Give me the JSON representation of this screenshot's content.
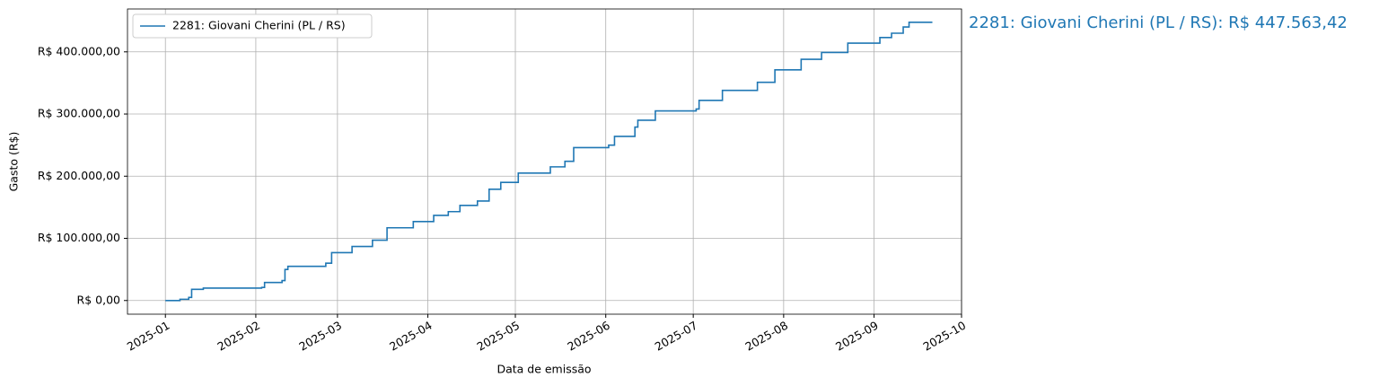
{
  "chart_data": {
    "type": "step-line",
    "x_label": "Data de emissão",
    "y_label": "Gasto (R$)",
    "annotation": "2281: Giovani Cherini (PL / RS): R$ 447.563,42",
    "x": [
      "2025-01-01",
      "2025-01-06",
      "2025-01-09",
      "2025-01-10",
      "2025-01-14",
      "2025-02-03",
      "2025-02-04",
      "2025-02-10",
      "2025-02-11",
      "2025-02-12",
      "2025-02-25",
      "2025-02-27",
      "2025-03-06",
      "2025-03-13",
      "2025-03-18",
      "2025-03-27",
      "2025-04-03",
      "2025-04-08",
      "2025-04-12",
      "2025-04-18",
      "2025-04-22",
      "2025-04-26",
      "2025-05-02",
      "2025-05-13",
      "2025-05-18",
      "2025-05-21",
      "2025-06-02",
      "2025-06-04",
      "2025-06-11",
      "2025-06-12",
      "2025-06-18",
      "2025-07-02",
      "2025-07-03",
      "2025-07-11",
      "2025-07-23",
      "2025-07-29",
      "2025-08-07",
      "2025-08-14",
      "2025-08-23",
      "2025-09-03",
      "2025-09-07",
      "2025-09-11",
      "2025-09-13",
      "2025-09-21"
    ],
    "series": [
      {
        "name": "2281: Giovani Cherini (PL / RS)",
        "color": "#1f77b4",
        "values": [
          0,
          2000,
          5000,
          18000,
          20000,
          21000,
          29000,
          32000,
          50000,
          55000,
          60000,
          77000,
          87000,
          97000,
          117000,
          127000,
          137000,
          143000,
          153000,
          160000,
          179000,
          190000,
          205000,
          215000,
          224000,
          246000,
          250000,
          264000,
          279000,
          290000,
          305000,
          308000,
          322000,
          338000,
          351000,
          371000,
          388000,
          399000,
          414000,
          423000,
          430000,
          440000,
          447563.42,
          447563.42
        ]
      }
    ],
    "xlim": [
      "2024-12-19",
      "2025-10-01"
    ],
    "xticks": [
      {
        "value": "2025-01-01",
        "label": "2025-01"
      },
      {
        "value": "2025-02-01",
        "label": "2025-02"
      },
      {
        "value": "2025-03-01",
        "label": "2025-03"
      },
      {
        "value": "2025-04-01",
        "label": "2025-04"
      },
      {
        "value": "2025-05-01",
        "label": "2025-05"
      },
      {
        "value": "2025-06-01",
        "label": "2025-06"
      },
      {
        "value": "2025-07-01",
        "label": "2025-07"
      },
      {
        "value": "2025-08-01",
        "label": "2025-08"
      },
      {
        "value": "2025-09-01",
        "label": "2025-09"
      },
      {
        "value": "2025-10-01",
        "label": "2025-10"
      }
    ],
    "ylim": [
      -22000,
      469000
    ],
    "yticks": [
      {
        "value": 0,
        "label": "R$ 0,00"
      },
      {
        "value": 100000,
        "label": "R$ 100.000,00"
      },
      {
        "value": 200000,
        "label": "R$ 200.000,00"
      },
      {
        "value": 300000,
        "label": "R$ 300.000,00"
      },
      {
        "value": 400000,
        "label": "R$ 400.000,00"
      }
    ],
    "grid": true,
    "legend": "upper left"
  }
}
